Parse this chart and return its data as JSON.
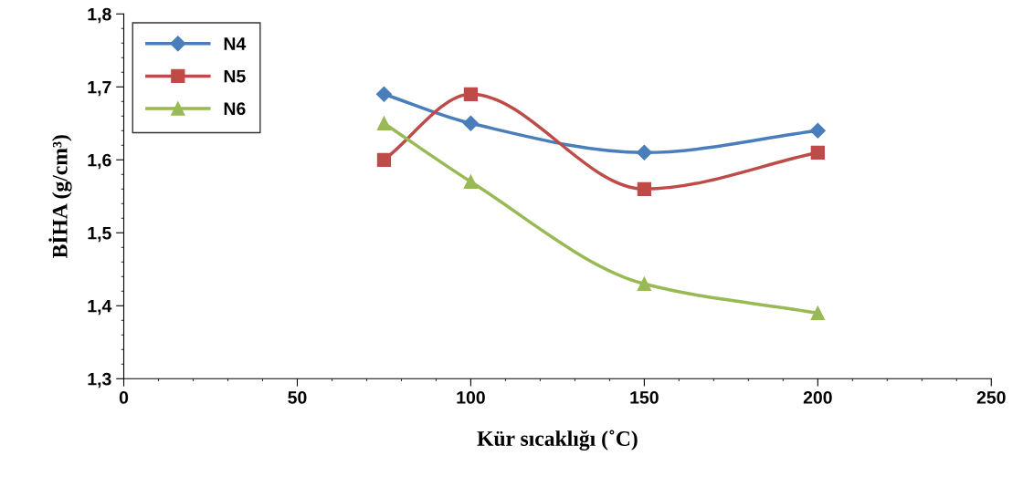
{
  "chart_data": {
    "type": "line",
    "xlabel": "Kür sıcaklığı (˚C)",
    "ylabel": "BİHA (g/cm³)",
    "x": [
      75,
      100,
      150,
      200
    ],
    "series": [
      {
        "name": "N4",
        "color": "#4a7ebb",
        "marker": "diamond",
        "values": [
          1.69,
          1.65,
          1.61,
          1.64
        ]
      },
      {
        "name": "N5",
        "color": "#be4b48",
        "marker": "square",
        "values": [
          1.6,
          1.69,
          1.56,
          1.61
        ]
      },
      {
        "name": "N6",
        "color": "#98b954",
        "marker": "triangle",
        "values": [
          1.65,
          1.57,
          1.43,
          1.39
        ]
      }
    ],
    "xlim": [
      0,
      250
    ],
    "xticks": [
      0,
      50,
      100,
      150,
      200,
      250
    ],
    "ylim": [
      1.3,
      1.8
    ],
    "yticks": [
      {
        "value": 1.3,
        "label": "1,3"
      },
      {
        "value": 1.4,
        "label": "1,4"
      },
      {
        "value": 1.5,
        "label": "1,5"
      },
      {
        "value": 1.6,
        "label": "1,6"
      },
      {
        "value": 1.7,
        "label": "1,7"
      },
      {
        "value": 1.8,
        "label": "1,8"
      }
    ],
    "grid": false,
    "legend": "top left",
    "line_style": "solid"
  }
}
